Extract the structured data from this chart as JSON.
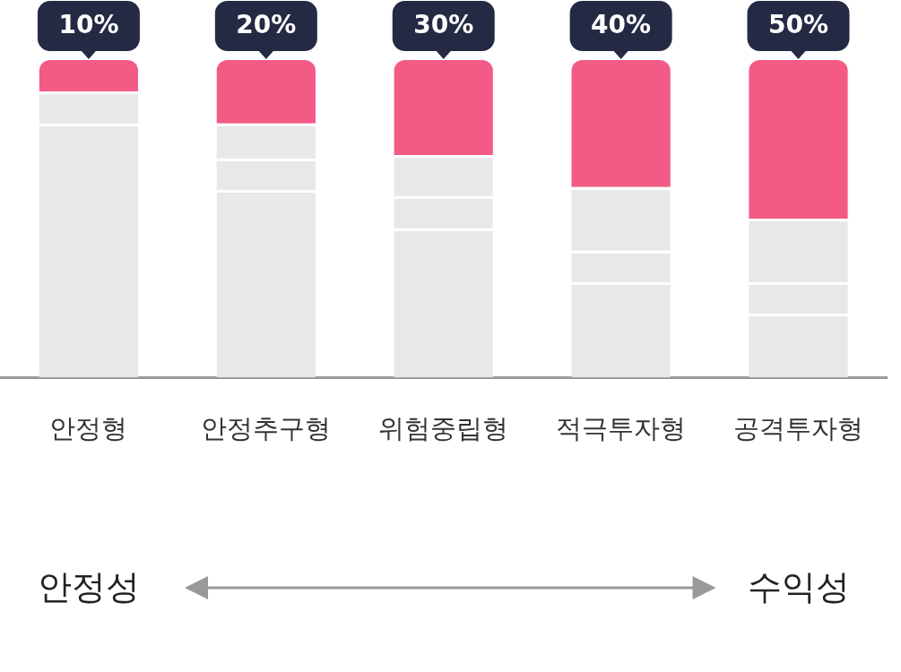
{
  "chart_data": {
    "type": "bar",
    "stacked": true,
    "tick_labels": "x",
    "categories": [
      "안정형",
      "안정추구형",
      "위험중립형",
      "적극투자형",
      "공격투자형"
    ],
    "series": [
      {
        "color": "#e8e8e8",
        "values": [
          80,
          59,
          47,
          30,
          20
        ]
      },
      {
        "color": "#e8e8e8",
        "values": [
          10,
          10,
          10,
          10,
          10
        ]
      },
      {
        "color": "#e8e8e8",
        "values": [
          null,
          11,
          13,
          20,
          20
        ]
      },
      {
        "color": "#f35b86",
        "values": [
          10,
          20,
          30,
          40,
          50
        ],
        "value_labels": [
          "10%",
          "20%",
          "30%",
          "40%",
          "50%"
        ]
      }
    ],
    "annotations": [
      "안정성",
      "수익성"
    ]
  }
}
